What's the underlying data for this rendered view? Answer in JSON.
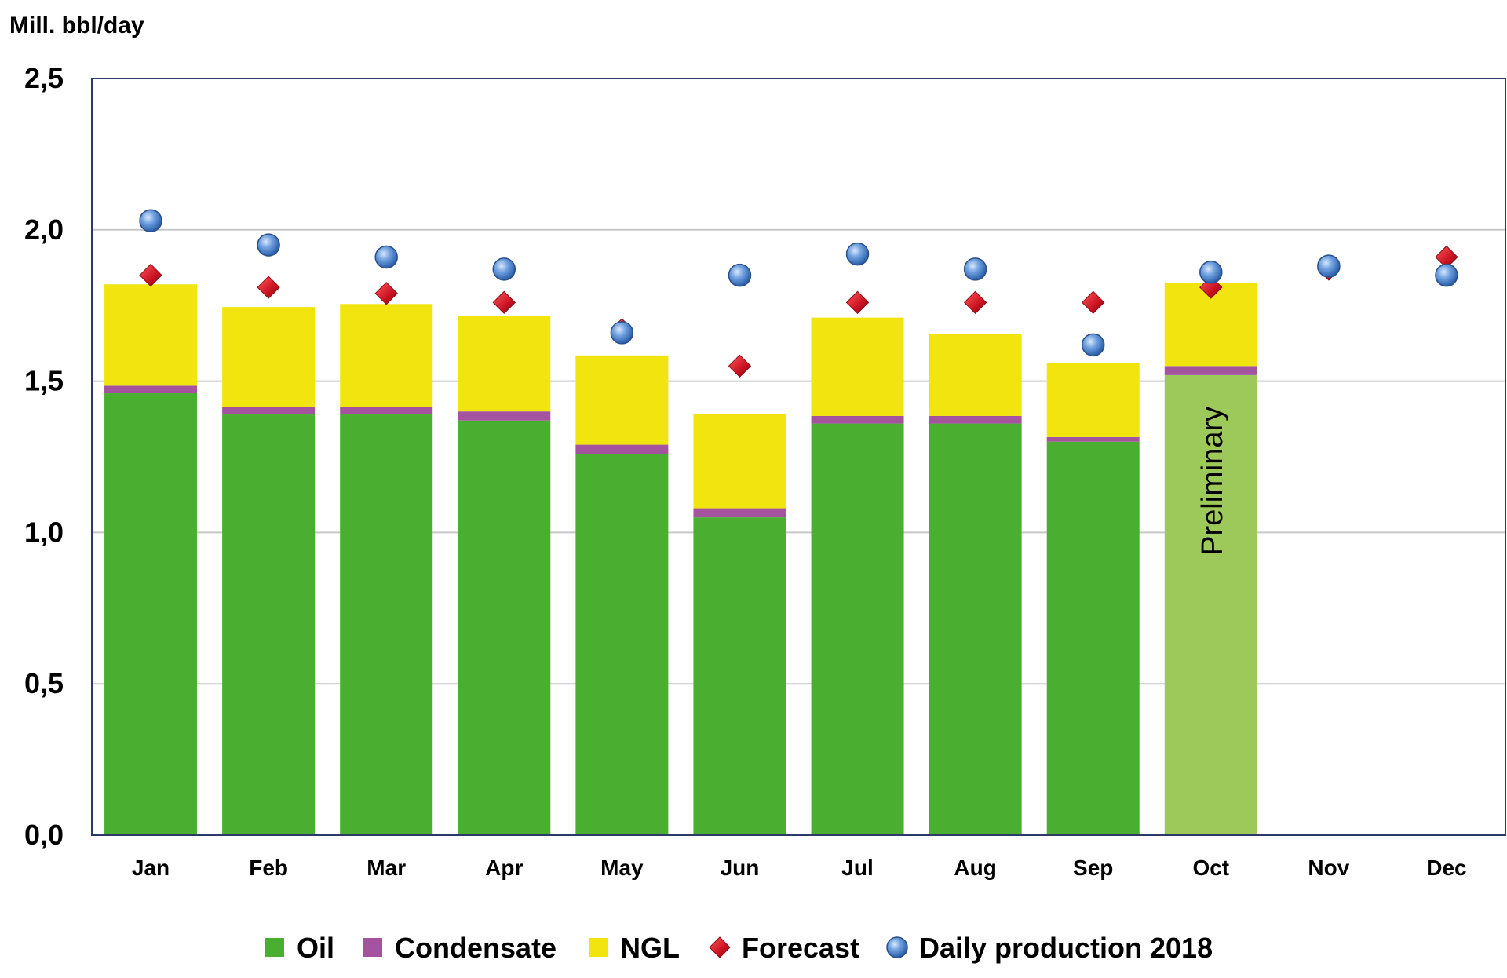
{
  "chart_data": {
    "type": "bar",
    "stacked": true,
    "ylabel": "Mill. bbl/day",
    "ylim": [
      0,
      2.5
    ],
    "yticks": [
      "0,0",
      "0,5",
      "1,0",
      "1,5",
      "2,0",
      "2,5"
    ],
    "ytick_values": [
      0,
      0.5,
      1.0,
      1.5,
      2.0,
      2.5
    ],
    "grid": true,
    "categories": [
      "Jan",
      "Feb",
      "Mar",
      "Apr",
      "May",
      "Jun",
      "Jul",
      "Aug",
      "Sep",
      "Oct",
      "Nov",
      "Dec"
    ],
    "series": [
      {
        "name": "Oil",
        "kind": "bar",
        "color": "#4aae31",
        "preliminary_color": "#9dc95a",
        "values": [
          1.46,
          1.39,
          1.39,
          1.37,
          1.26,
          1.05,
          1.36,
          1.36,
          1.3,
          1.52,
          null,
          null
        ]
      },
      {
        "name": "Condensate",
        "kind": "bar",
        "color": "#a4549f",
        "values": [
          0.025,
          0.025,
          0.025,
          0.03,
          0.03,
          0.03,
          0.025,
          0.025,
          0.015,
          0.03,
          null,
          null
        ]
      },
      {
        "name": "NGL",
        "kind": "bar",
        "color": "#f2e40f",
        "values": [
          0.335,
          0.33,
          0.34,
          0.315,
          0.295,
          0.31,
          0.325,
          0.27,
          0.245,
          0.275,
          null,
          null
        ]
      },
      {
        "name": "Forecast",
        "kind": "marker",
        "marker": "diamond",
        "color": "#cc1222",
        "values": [
          1.85,
          1.81,
          1.79,
          1.76,
          1.67,
          1.55,
          1.76,
          1.76,
          1.76,
          1.81,
          1.87,
          1.91
        ]
      },
      {
        "name": "Daily production 2018",
        "kind": "marker",
        "marker": "circle",
        "color": "#4f86cf",
        "values": [
          2.03,
          1.95,
          1.91,
          1.87,
          1.66,
          1.85,
          1.92,
          1.87,
          1.62,
          1.86,
          1.88,
          1.85
        ]
      }
    ],
    "annotations": [
      {
        "text": "Preliminary",
        "category": "Oct",
        "rotation": "vertical"
      }
    ],
    "legend": [
      "Oil",
      "Condensate",
      "NGL",
      "Forecast",
      "Daily production 2018"
    ],
    "legend_position": "bottom"
  }
}
